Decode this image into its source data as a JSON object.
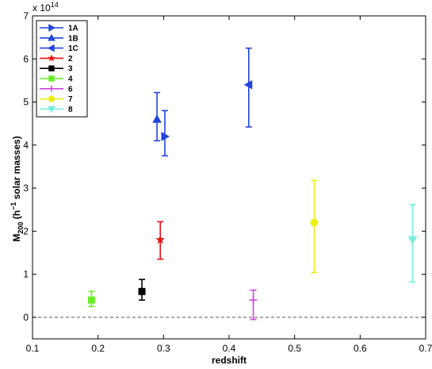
{
  "chart_data": {
    "type": "scatter",
    "title": "",
    "xlabel": "redshift",
    "ylabel_main": "M",
    "ylabel_sub": "200",
    "ylabel_rest_open": " (h",
    "ylabel_sup": "−1",
    "ylabel_rest_close": " solar masses)",
    "xlim": [
      0.1,
      0.7
    ],
    "ylim": [
      -0.5,
      7
    ],
    "x_ticks": [
      0.1,
      0.2,
      0.3,
      0.4,
      0.5,
      0.6,
      0.7
    ],
    "x_tick_labels": [
      "0.1",
      "0.2",
      "0.3",
      "0.4",
      "0.5",
      "0.6",
      "0.7"
    ],
    "y_ticks": [
      0,
      1,
      2,
      3,
      4,
      5,
      6,
      7
    ],
    "y_tick_labels": [
      "0",
      "1",
      "2",
      "3",
      "4",
      "5",
      "6",
      "7"
    ],
    "y_multiplier_base": "x 10",
    "y_multiplier_exp": "14",
    "reference_line": {
      "y": 0,
      "style": "dashed",
      "color": "#555555"
    },
    "grid": false,
    "legend_position": "top-left",
    "series": [
      {
        "name": "1A",
        "marker": "triangle-right",
        "color": "#2244dd",
        "x": 0.302,
        "y": 4.2,
        "y_low": 3.75,
        "y_high": 4.8
      },
      {
        "name": "1B",
        "marker": "triangle-up",
        "color": "#2244dd",
        "x": 0.29,
        "y": 4.6,
        "y_low": 4.1,
        "y_high": 5.22
      },
      {
        "name": "1C",
        "marker": "triangle-left",
        "color": "#2244dd",
        "x": 0.43,
        "y": 5.4,
        "y_low": 4.42,
        "y_high": 6.25
      },
      {
        "name": "2",
        "marker": "star",
        "color": "#ee1111",
        "x": 0.295,
        "y": 1.8,
        "y_low": 1.35,
        "y_high": 2.22
      },
      {
        "name": "3",
        "marker": "square",
        "color": "#000000",
        "x": 0.267,
        "y": 0.6,
        "y_low": 0.4,
        "y_high": 0.88
      },
      {
        "name": "4",
        "marker": "square",
        "color": "#66ee22",
        "x": 0.19,
        "y": 0.4,
        "y_low": 0.25,
        "y_high": 0.6
      },
      {
        "name": "6",
        "marker": "plus",
        "color": "#cc44dd",
        "x": 0.437,
        "y": 0.4,
        "y_low": -0.05,
        "y_high": 0.63
      },
      {
        "name": "7",
        "marker": "circle",
        "color": "#eeee11",
        "x": 0.53,
        "y": 2.2,
        "y_low": 1.04,
        "y_high": 3.18
      },
      {
        "name": "8",
        "marker": "triangle-down",
        "color": "#77eedd",
        "x": 0.68,
        "y": 1.8,
        "y_low": 0.82,
        "y_high": 2.62
      }
    ]
  }
}
